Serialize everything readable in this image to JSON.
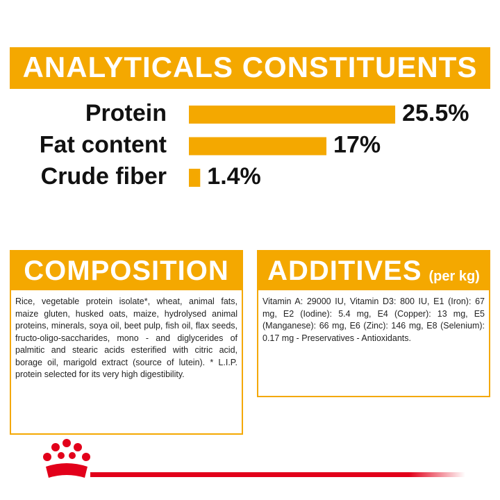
{
  "chart_data": {
    "type": "bar",
    "orientation": "horizontal",
    "title": "ANALYTICALS CONSTITUENTS",
    "categories": [
      "Protein",
      "Fat content",
      "Crude fiber"
    ],
    "values": [
      25.5,
      17,
      1.4
    ],
    "value_labels": [
      "25.5%",
      "17%",
      "1.4%"
    ],
    "color": "#f4a800"
  },
  "composition": {
    "title": "COMPOSITION",
    "text": "Rice, vegetable protein isolate*, wheat, animal fats, maize gluten, husked oats, maize, hydrolysed animal proteins, minerals, soya oil, beet pulp, fish oil, flax seeds, fructo-oligo-saccharides, mono - and diglycerides of palmitic and stearic acids esterified with citric acid, borage oil, marigold extract (source of lutein). * L.I.P. protein selected for its very high digestibility."
  },
  "additives": {
    "title": "ADDITIVES",
    "unit": "(per kg)",
    "text": "Vitamin A: 29000 IU, Vitamin D3: 800 IU, E1 (Iron): 67 mg, E2 (Iodine): 5.4 mg, E4 (Copper): 13 mg, E5 (Manganese): 66 mg, E6 (Zinc): 146 mg, E8 (Selenium): 0.17 mg - Preservatives - Antioxidants."
  }
}
